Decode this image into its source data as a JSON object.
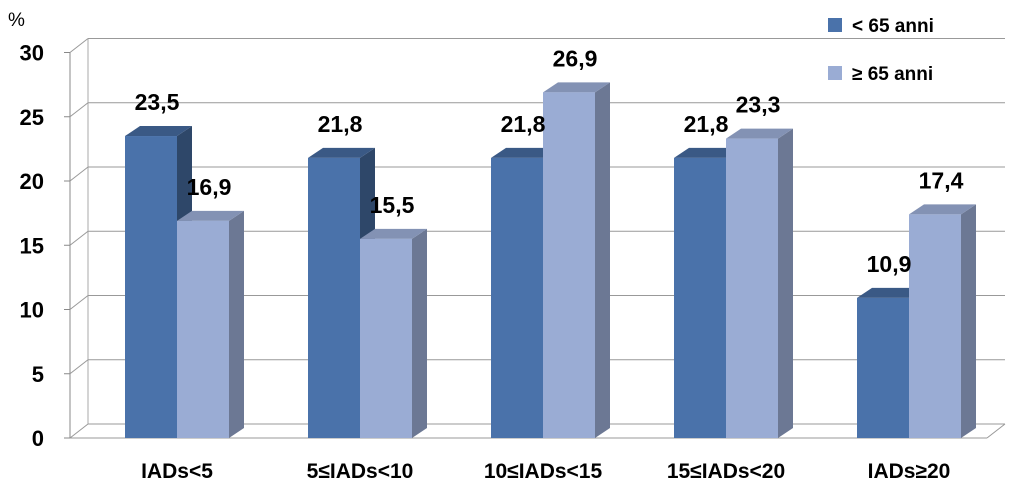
{
  "chart_data": {
    "type": "bar",
    "ylabel": "%",
    "ylim": [
      0,
      30
    ],
    "yticks": [
      "0",
      "5",
      "10",
      "15",
      "20",
      "25",
      "30"
    ],
    "categories": [
      "IADs<5",
      "5≤IADs<10",
      "10≤IADs<15",
      "15≤IADs<20",
      "IADs≥20"
    ],
    "series": [
      {
        "name": "< 65 anni",
        "values": [
          23.5,
          21.8,
          21.8,
          21.8,
          10.9
        ],
        "labels": [
          "23,5",
          "21,8",
          "21,8",
          "21,8",
          "10,9"
        ],
        "color": "#4a72aa"
      },
      {
        "name": "≥ 65 anni",
        "values": [
          16.9,
          15.5,
          26.9,
          23.3,
          17.4
        ],
        "labels": [
          "16,9",
          "15,5",
          "26,9",
          "23,3",
          "17,4"
        ],
        "color": "#9aacd4"
      }
    ],
    "grid": true,
    "legend": "top-right",
    "style": "3d-clustered-column"
  }
}
